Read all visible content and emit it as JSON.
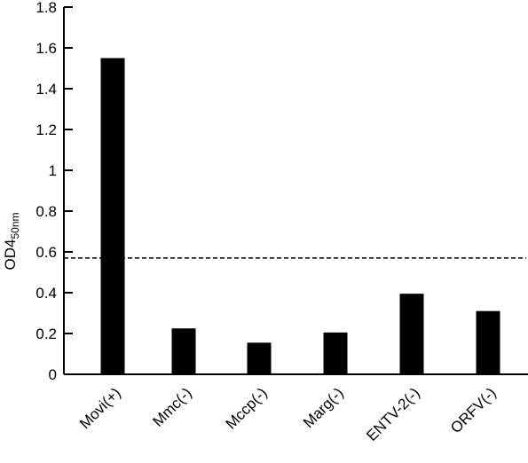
{
  "chart_data": {
    "type": "bar",
    "categories": [
      "Movi(+)",
      "Mmc(-)",
      "Mccp(-)",
      "Marg(-)",
      "ENTV-2(-)",
      "ORFV(-)"
    ],
    "values": [
      1.55,
      0.225,
      0.155,
      0.205,
      0.395,
      0.31
    ],
    "ylim": [
      0,
      1.8
    ],
    "yticks": [
      0,
      0.2,
      0.4,
      0.6,
      0.8,
      1,
      1.2,
      1.4,
      1.6,
      1.8
    ],
    "ytick_labels": [
      "0",
      "0.2",
      "0.4",
      "0.6",
      "0.8",
      "1",
      "1.2",
      "1.4",
      "1.6",
      "1.8"
    ],
    "ylabel": "OD4",
    "ylabel_subscript": "50nm",
    "xlabel": "",
    "title": "",
    "threshold": 0.57,
    "grid": false,
    "colors": {
      "bar": "#000000",
      "threshold_line": "#000000"
    }
  }
}
